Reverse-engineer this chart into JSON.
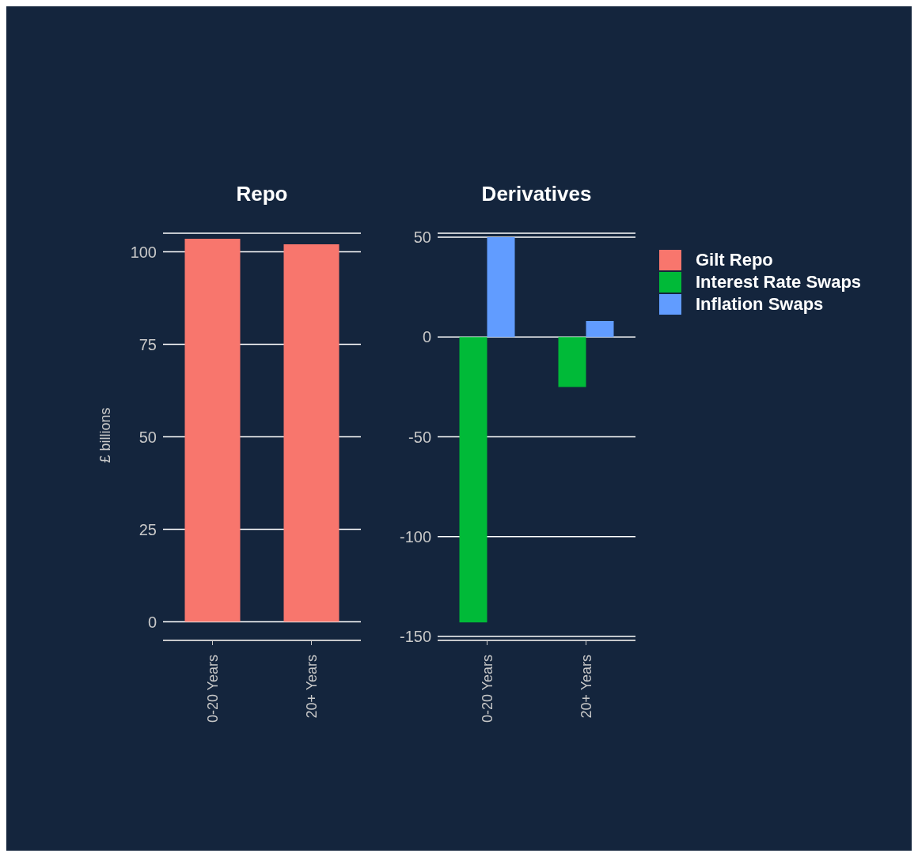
{
  "chart_data": [
    {
      "type": "bar",
      "title": "Repo",
      "ylabel": "£ billions",
      "categories": [
        "0-20 Years",
        "20+ Years"
      ],
      "series": [
        {
          "name": "Gilt Repo",
          "color": "#f8766d",
          "values": [
            103.5,
            102
          ]
        }
      ],
      "ylim": [
        -5,
        105
      ],
      "yticks": [
        0,
        25,
        50,
        75,
        100
      ],
      "grid": "y",
      "legend": "right"
    },
    {
      "type": "bar",
      "title": "Derivatives",
      "categories": [
        "0-20 Years",
        "20+ Years"
      ],
      "series": [
        {
          "name": "Interest Rate Swaps",
          "color": "#00ba38",
          "values": [
            -143,
            -25
          ]
        },
        {
          "name": "Inflation Swaps",
          "color": "#619cff",
          "values": [
            50,
            8
          ]
        }
      ],
      "ylim": [
        -152,
        52
      ],
      "yticks": [
        -150,
        -100,
        -50,
        0,
        50
      ],
      "grid": "y",
      "legend": "right"
    }
  ]
}
